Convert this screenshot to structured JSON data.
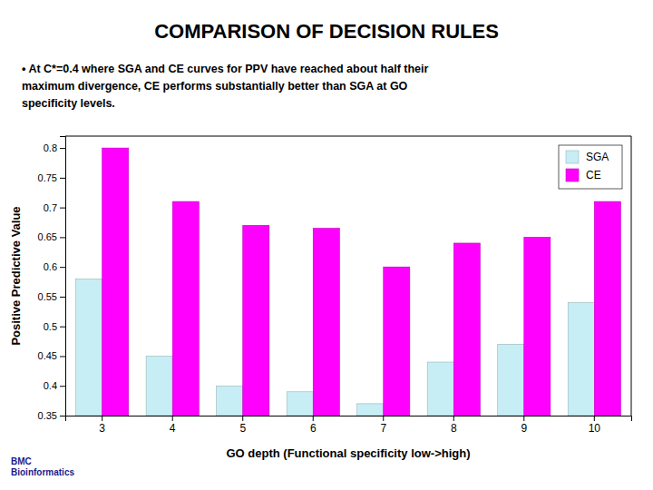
{
  "chart_data": {
    "type": "bar",
    "title": "COMPARISON OF  DECISION RULES",
    "annotations": [
      "• At C*=0.4 where SGA and CE curves for PPV have reached about half their\nmaximum divergence, CE performs substantially better than SGA at GO\nspecificity levels.",
      "BMC\nBioinformatics"
    ],
    "x_label": "GO depth (Functional specificity low->high)",
    "y_label": "Positive Predictive Value",
    "categories": [
      3,
      4,
      5,
      6,
      7,
      8,
      9,
      10
    ],
    "series": [
      {
        "name": "SGA",
        "color": "#c8eef5",
        "values": [
          0.58,
          0.45,
          0.4,
          0.39,
          0.37,
          0.44,
          0.47,
          0.54
        ]
      },
      {
        "name": "CE",
        "color": "#ff00ff",
        "values": [
          0.8,
          0.71,
          0.67,
          0.665,
          0.6,
          0.64,
          0.65,
          0.71
        ]
      }
    ],
    "ylim": [
      0.35,
      0.82
    ],
    "yticks": [
      0.35,
      0.4,
      0.45,
      0.5,
      0.55,
      0.6,
      0.65,
      0.7,
      0.75,
      0.8
    ],
    "legend": "upper right",
    "grid": false
  }
}
